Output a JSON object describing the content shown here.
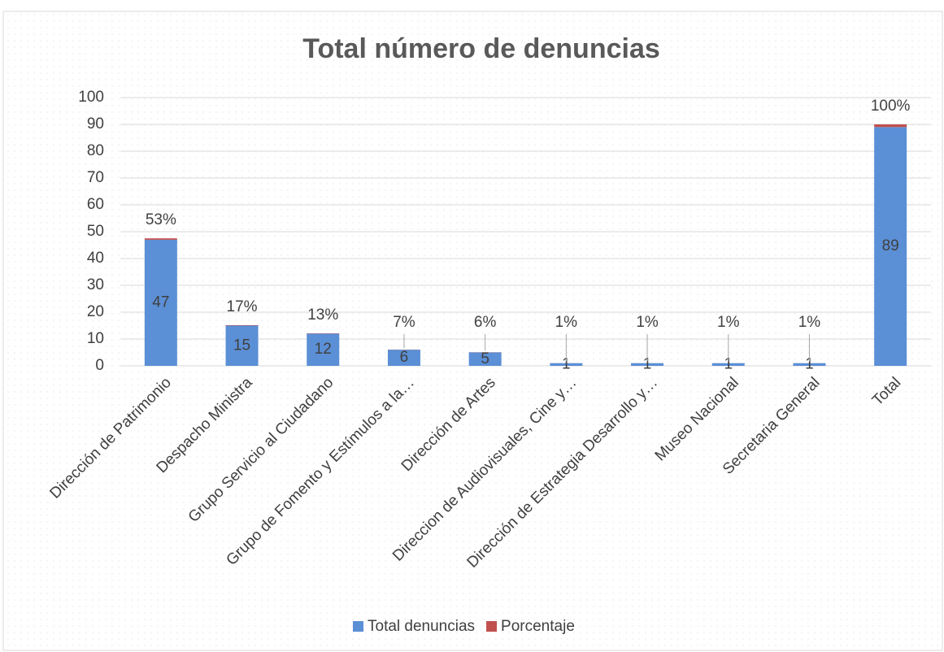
{
  "chart_data": {
    "type": "stacked_bar",
    "title": "Total número de denuncias",
    "categories": [
      "Dirección de Patrimonio",
      "Despacho Ministra",
      "Grupo Servicio al Ciudadano",
      "Grupo de Fomento y Estímulos a la…",
      "Dirección de Artes",
      "Direccion de Audiovisuales, Cine y…",
      "Dirección de Estrategia Desarrollo y…",
      "Museo Nacional",
      "Secretaria General",
      "Total"
    ],
    "series": [
      {
        "name": "Total denuncias",
        "color": "#5b8fd6",
        "values": [
          47,
          15,
          12,
          6,
          5,
          1,
          1,
          1,
          1,
          89
        ]
      },
      {
        "name": "Porcentaje",
        "color": "#c0504d",
        "values": [
          0.53,
          0.17,
          0.13,
          0.07,
          0.06,
          0.01,
          0.01,
          0.01,
          0.01,
          1.0
        ],
        "value_labels": [
          "53%",
          "17%",
          "13%",
          "7%",
          "6%",
          "1%",
          "1%",
          "1%",
          "1%",
          "100%"
        ]
      }
    ],
    "ylim": [
      0,
      100
    ],
    "yticks": [
      0,
      10,
      20,
      30,
      40,
      50,
      60,
      70,
      80,
      90,
      100
    ],
    "grid": true,
    "legend": "bottom"
  }
}
